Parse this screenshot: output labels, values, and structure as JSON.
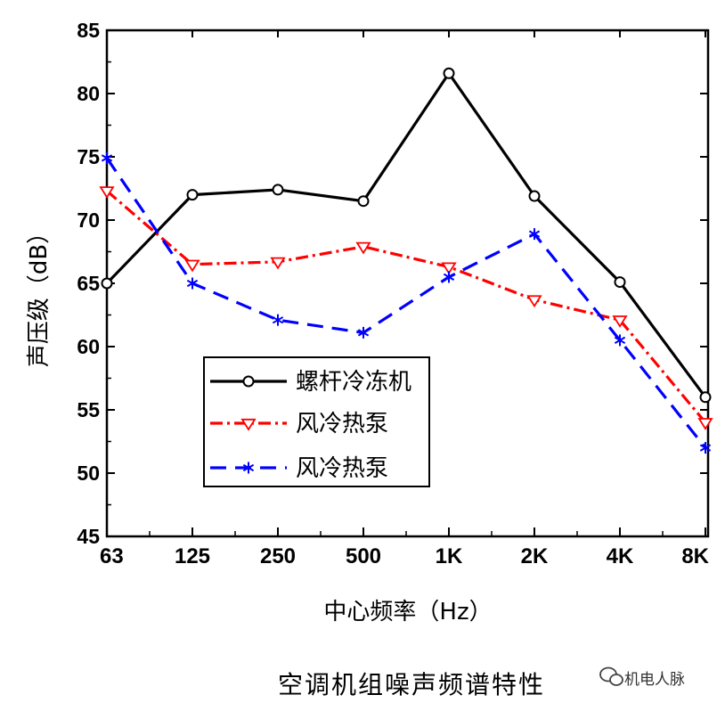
{
  "chart_data": {
    "type": "line",
    "categories": [
      "63",
      "125",
      "250",
      "500",
      "1K",
      "2K",
      "4K",
      "8K"
    ],
    "series": [
      {
        "name": "螺杆冷冻机",
        "color": "#000000",
        "marker": "circle",
        "dash": "solid",
        "values": [
          65.0,
          72.0,
          72.4,
          71.5,
          81.6,
          71.9,
          65.1,
          56.0
        ]
      },
      {
        "name": "风冷热泵",
        "color": "#ff0000",
        "marker": "triangle-down",
        "dash": "dashdot",
        "values": [
          72.3,
          66.5,
          66.7,
          67.9,
          66.3,
          63.7,
          62.1,
          54.0
        ]
      },
      {
        "name": "风冷热泵",
        "color": "#0000ff",
        "marker": "asterisk",
        "dash": "dash",
        "values": [
          74.9,
          65.0,
          62.1,
          61.1,
          65.5,
          68.9,
          60.5,
          52.0
        ]
      }
    ],
    "ylabel": "声压级（dB）",
    "xlabel": "中心频率（Hz）",
    "ylim": [
      45,
      85
    ],
    "yticks": [
      45,
      50,
      55,
      60,
      65,
      70,
      75,
      80,
      85
    ],
    "grid": false,
    "legend_position": "lower-center"
  },
  "caption": "空调机组噪声频谱特性",
  "watermark": "机电人脉"
}
